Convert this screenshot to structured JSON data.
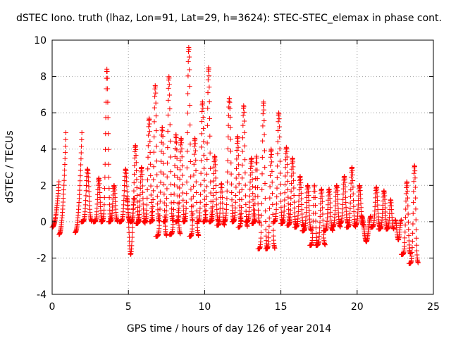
{
  "chart_data": {
    "type": "scatter",
    "title": "dSTEC Iono. truth (lhaz, Lon=91, Lat=29, h=3624): STEC-STEC_elemax in phase cont.",
    "xlabel": "GPS time / hours of day 126 of year 2014",
    "ylabel": "dSTEC  / TECUs",
    "xlim": [
      0,
      25
    ],
    "ylim": [
      -4,
      10
    ],
    "xticks": [
      0,
      5,
      10,
      15,
      20,
      25
    ],
    "yticks": [
      -4,
      -2,
      0,
      2,
      4,
      6,
      8,
      10
    ],
    "grid": true,
    "marker": "+",
    "color": "#ff0000",
    "arcs": [
      {
        "start": 0.0,
        "end": 0.45,
        "min": -0.3,
        "peak": 2.2,
        "shape": "rise"
      },
      {
        "start": 0.45,
        "end": 0.9,
        "min": -0.7,
        "peak": 4.9,
        "shape": "rise"
      },
      {
        "start": 1.5,
        "end": 1.95,
        "min": -0.6,
        "peak": 4.9,
        "shape": "rise"
      },
      {
        "start": 1.9,
        "end": 2.6,
        "min": 0.0,
        "peak": 2.9,
        "shape": "spike"
      },
      {
        "start": 2.7,
        "end": 3.3,
        "min": 0.0,
        "peak": 2.4,
        "shape": "spike"
      },
      {
        "start": 3.2,
        "end": 3.85,
        "min": 0.0,
        "peak": 8.4,
        "shape": "spike"
      },
      {
        "start": 3.7,
        "end": 4.3,
        "min": 0.0,
        "peak": 2.0,
        "shape": "spike"
      },
      {
        "start": 4.4,
        "end": 5.1,
        "min": 0.0,
        "peak": 2.9,
        "shape": "spike"
      },
      {
        "start": 4.9,
        "end": 5.4,
        "min": -1.8,
        "peak": 1.3,
        "shape": "valley"
      },
      {
        "start": 5.1,
        "end": 5.7,
        "min": 0.0,
        "peak": 4.2,
        "shape": "spike"
      },
      {
        "start": 5.5,
        "end": 6.1,
        "min": -0.1,
        "peak": 3.0,
        "shape": "spike"
      },
      {
        "start": 6.0,
        "end": 6.6,
        "min": 0.0,
        "peak": 5.7,
        "shape": "spike"
      },
      {
        "start": 6.4,
        "end": 7.0,
        "min": 0.0,
        "peak": 7.5,
        "shape": "spike"
      },
      {
        "start": 6.8,
        "end": 7.5,
        "min": -0.8,
        "peak": 5.2,
        "shape": "spike"
      },
      {
        "start": 7.3,
        "end": 7.9,
        "min": 0.0,
        "peak": 8.0,
        "shape": "spike"
      },
      {
        "start": 7.7,
        "end": 8.4,
        "min": -0.7,
        "peak": 4.8,
        "shape": "spike"
      },
      {
        "start": 8.1,
        "end": 8.7,
        "min": 0.0,
        "peak": 4.6,
        "shape": "spike"
      },
      {
        "start": 8.6,
        "end": 9.2,
        "min": 0.0,
        "peak": 9.6,
        "shape": "spike"
      },
      {
        "start": 9.0,
        "end": 9.6,
        "min": -0.8,
        "peak": 4.6,
        "shape": "spike"
      },
      {
        "start": 9.5,
        "end": 10.1,
        "min": 0.0,
        "peak": 6.6,
        "shape": "spike"
      },
      {
        "start": 9.9,
        "end": 10.5,
        "min": 0.0,
        "peak": 8.5,
        "shape": "spike"
      },
      {
        "start": 10.3,
        "end": 10.9,
        "min": 0.0,
        "peak": 3.6,
        "shape": "spike"
      },
      {
        "start": 10.8,
        "end": 11.3,
        "min": -0.2,
        "peak": 2.1,
        "shape": "spike"
      },
      {
        "start": 11.2,
        "end": 11.9,
        "min": 0.0,
        "peak": 6.8,
        "shape": "spike"
      },
      {
        "start": 11.8,
        "end": 12.4,
        "min": 0.0,
        "peak": 4.7,
        "shape": "spike"
      },
      {
        "start": 12.2,
        "end": 12.8,
        "min": -0.3,
        "peak": 6.4,
        "shape": "spike"
      },
      {
        "start": 12.7,
        "end": 13.3,
        "min": 0.0,
        "peak": 3.5,
        "shape": "spike"
      },
      {
        "start": 13.1,
        "end": 13.6,
        "min": -0.1,
        "peak": 3.6,
        "shape": "spike"
      },
      {
        "start": 13.5,
        "end": 14.1,
        "min": -1.5,
        "peak": 6.6,
        "shape": "spike"
      },
      {
        "start": 14.0,
        "end": 14.6,
        "min": -1.5,
        "peak": 4.0,
        "shape": "spike"
      },
      {
        "start": 14.5,
        "end": 15.1,
        "min": 0.0,
        "peak": 6.0,
        "shape": "spike"
      },
      {
        "start": 15.0,
        "end": 15.6,
        "min": -0.1,
        "peak": 4.1,
        "shape": "spike"
      },
      {
        "start": 15.4,
        "end": 16.0,
        "min": -0.2,
        "peak": 3.5,
        "shape": "spike"
      },
      {
        "start": 15.9,
        "end": 16.5,
        "min": -0.3,
        "peak": 2.5,
        "shape": "spike"
      },
      {
        "start": 16.4,
        "end": 17.0,
        "min": -0.5,
        "peak": 2.0,
        "shape": "spike"
      },
      {
        "start": 16.9,
        "end": 17.4,
        "min": -1.3,
        "peak": 2.0,
        "shape": "spike"
      },
      {
        "start": 17.3,
        "end": 17.9,
        "min": -1.3,
        "peak": 1.8,
        "shape": "spike"
      },
      {
        "start": 17.8,
        "end": 18.4,
        "min": -0.5,
        "peak": 1.8,
        "shape": "spike"
      },
      {
        "start": 18.3,
        "end": 18.9,
        "min": -0.3,
        "peak": 2.0,
        "shape": "spike"
      },
      {
        "start": 18.8,
        "end": 19.4,
        "min": -0.1,
        "peak": 2.5,
        "shape": "spike"
      },
      {
        "start": 19.3,
        "end": 19.9,
        "min": -0.3,
        "peak": 3.0,
        "shape": "spike"
      },
      {
        "start": 19.8,
        "end": 20.4,
        "min": -0.2,
        "peak": 2.0,
        "shape": "spike"
      },
      {
        "start": 20.3,
        "end": 20.9,
        "min": -1.1,
        "peak": 0.3,
        "shape": "valley"
      },
      {
        "start": 20.9,
        "end": 21.5,
        "min": -0.3,
        "peak": 1.9,
        "shape": "spike"
      },
      {
        "start": 21.4,
        "end": 22.0,
        "min": -0.4,
        "peak": 1.7,
        "shape": "spike"
      },
      {
        "start": 21.9,
        "end": 22.4,
        "min": -0.4,
        "peak": 1.2,
        "shape": "spike"
      },
      {
        "start": 22.5,
        "end": 22.9,
        "min": -1.0,
        "peak": 0.1,
        "shape": "valley"
      },
      {
        "start": 22.9,
        "end": 23.5,
        "min": -1.8,
        "peak": 2.2,
        "shape": "spike"
      },
      {
        "start": 23.4,
        "end": 24.0,
        "min": -2.3,
        "peak": 3.1,
        "shape": "spike"
      }
    ]
  }
}
